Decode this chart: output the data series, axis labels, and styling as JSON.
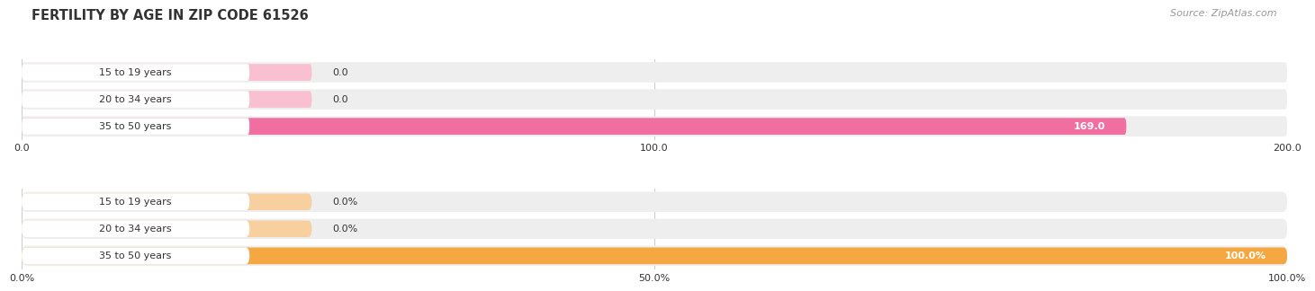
{
  "title": "FERTILITY BY AGE IN ZIP CODE 61526",
  "source": "Source: ZipAtlas.com",
  "top_chart": {
    "categories": [
      "15 to 19 years",
      "20 to 34 years",
      "35 to 50 years"
    ],
    "values": [
      0.0,
      0.0,
      169.0
    ],
    "xlim": [
      0,
      200
    ],
    "xticks": [
      0.0,
      100.0,
      200.0
    ],
    "xticklabels": [
      "0.0",
      "100.0",
      "200.0"
    ],
    "bar_color_main": "#f06ea0",
    "bar_color_light": "#f8c0d0",
    "bar_bg_color": "#eeeeee",
    "bar_label_bg": "#ffffff",
    "value_labels": [
      "0.0",
      "0.0",
      "169.0"
    ]
  },
  "bottom_chart": {
    "categories": [
      "15 to 19 years",
      "20 to 34 years",
      "35 to 50 years"
    ],
    "values": [
      0.0,
      0.0,
      100.0
    ],
    "xlim": [
      0,
      100
    ],
    "xticks": [
      0.0,
      50.0,
      100.0
    ],
    "xticklabels": [
      "0.0%",
      "50.0%",
      "100.0%"
    ],
    "bar_color_main": "#f5a842",
    "bar_color_light": "#f8d0a0",
    "bar_bg_color": "#eeeeee",
    "bar_label_bg": "#ffffff",
    "value_labels": [
      "0.0%",
      "0.0%",
      "100.0%"
    ]
  },
  "background_color": "#ffffff",
  "label_fontsize": 8.0,
  "tick_fontsize": 8.0,
  "title_fontsize": 10.5,
  "source_fontsize": 8.0,
  "grid_color": "#cccccc",
  "text_color": "#333333"
}
